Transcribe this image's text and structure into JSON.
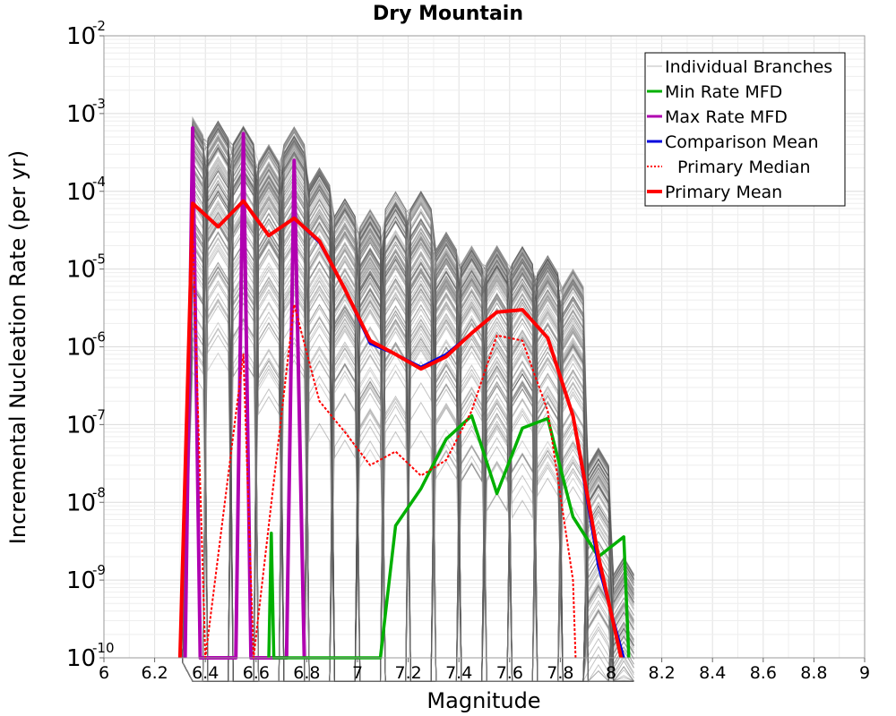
{
  "chart_data": {
    "type": "line",
    "title": "Dry Mountain",
    "xlabel": "Magnitude",
    "ylabel": "Incremental Nucleation Rate (per yr)",
    "xlim": [
      6,
      9
    ],
    "ylim": [
      1e-10,
      0.01
    ],
    "yscale": "log",
    "grid": true,
    "legend_position": "top-right",
    "x_ticks": [
      "6",
      "6.2",
      "6.4",
      "6.6",
      "6.8",
      "7",
      "7.2",
      "7.4",
      "7.6",
      "7.8",
      "8",
      "8.2",
      "8.4",
      "8.6",
      "8.8",
      "9"
    ],
    "y_ticks": [
      {
        "base": "10",
        "exp": "-10"
      },
      {
        "base": "10",
        "exp": "-9"
      },
      {
        "base": "10",
        "exp": "-8"
      },
      {
        "base": "10",
        "exp": "-7"
      },
      {
        "base": "10",
        "exp": "-6"
      },
      {
        "base": "10",
        "exp": "-5"
      },
      {
        "base": "10",
        "exp": "-4"
      },
      {
        "base": "10",
        "exp": "-3"
      },
      {
        "base": "10",
        "exp": "-2"
      }
    ],
    "legend": [
      {
        "label": "Individual Branches",
        "color": "#bbbbbb",
        "style": "thin"
      },
      {
        "label": "Min Rate MFD",
        "color": "#00b000",
        "style": "solid"
      },
      {
        "label": "Max Rate MFD",
        "color": "#b000b0",
        "style": "solid"
      },
      {
        "label": "Comparison Mean",
        "color": "#0000dd",
        "style": "solid"
      },
      {
        "label": "Primary Median",
        "color": "#ff0000",
        "style": "dotted"
      },
      {
        "label": "Primary Mean",
        "color": "#ff0000",
        "style": "thick"
      }
    ],
    "series": [
      {
        "name": "Individual Branches",
        "color": "#555555",
        "branch_count": 200,
        "envelope_x": [
          6.35,
          6.45,
          6.55,
          6.65,
          6.75,
          6.85,
          6.95,
          7.05,
          7.15,
          7.25,
          7.35,
          7.45,
          7.55,
          7.65,
          7.75,
          7.85,
          7.95,
          8.05
        ],
        "envelope_max": [
          0.0009,
          0.0008,
          0.0007,
          0.0004,
          0.0007,
          0.0002,
          8e-05,
          6e-05,
          0.0001,
          0.0001,
          3e-05,
          2e-05,
          2e-05,
          2e-05,
          1.5e-05,
          1e-05,
          5e-08,
          2e-09
        ]
      },
      {
        "name": "Min Rate MFD",
        "color": "#00b000",
        "x": [
          6.65,
          6.66,
          6.67,
          7.09,
          7.15,
          7.25,
          7.35,
          7.45,
          7.55,
          7.65,
          7.75,
          7.85,
          7.95,
          8.05,
          8.07
        ],
        "y": [
          1e-10,
          4e-09,
          1e-10,
          1e-10,
          5e-09,
          1.5e-08,
          6.5e-08,
          1.3e-07,
          1.3e-08,
          9e-08,
          1.2e-07,
          6.5e-09,
          2e-09,
          3.6e-09,
          1e-10
        ]
      },
      {
        "name": "Max Rate MFD",
        "color": "#b000b0",
        "x": [
          6.32,
          6.35,
          6.38,
          6.52,
          6.55,
          6.58,
          6.72,
          6.75,
          6.79
        ],
        "y": [
          1e-10,
          0.00065,
          1e-10,
          1e-10,
          0.00055,
          1e-10,
          1e-10,
          0.00025,
          1e-10
        ]
      },
      {
        "name": "Comparison Mean",
        "color": "#0000dd",
        "x": [
          6.3,
          6.35,
          6.45,
          6.55,
          6.65,
          6.75,
          6.85,
          6.95,
          7.05,
          7.15,
          7.25,
          7.35,
          7.45,
          7.55,
          7.65,
          7.75,
          7.85,
          7.95,
          8.05
        ],
        "y": [
          1e-10,
          7e-05,
          3.5e-05,
          7.5e-05,
          2.7e-05,
          4.5e-05,
          2.2e-05,
          5.5e-06,
          1.1e-06,
          8e-07,
          5.5e-07,
          8e-07,
          1.5e-06,
          2.8e-06,
          3e-06,
          1.3e-06,
          1.3e-07,
          1.5e-09,
          1e-10
        ]
      },
      {
        "name": "Primary Median",
        "color": "#ff0000",
        "x": [
          6.35,
          6.4,
          6.55,
          6.59,
          6.75,
          6.85,
          6.95,
          7.05,
          7.15,
          7.25,
          7.35,
          7.45,
          7.55,
          7.65,
          7.75,
          7.85,
          7.86
        ],
        "y": [
          3e-05,
          1e-10,
          8e-07,
          1e-10,
          3.5e-06,
          2e-07,
          8e-08,
          3e-08,
          4.5e-08,
          2.2e-08,
          3.5e-08,
          1.5e-07,
          1.4e-06,
          1.2e-06,
          1.5e-07,
          1e-09,
          1e-10
        ]
      },
      {
        "name": "Primary Mean",
        "color": "#ff0000",
        "x": [
          6.3,
          6.35,
          6.45,
          6.55,
          6.65,
          6.75,
          6.85,
          6.95,
          7.05,
          7.15,
          7.25,
          7.35,
          7.45,
          7.55,
          7.65,
          7.75,
          7.85,
          7.95,
          8.04
        ],
        "y": [
          1e-10,
          7e-05,
          3.5e-05,
          7.5e-05,
          2.7e-05,
          4.5e-05,
          2.3e-05,
          5.5e-06,
          1.2e-06,
          8e-07,
          5.2e-07,
          7.5e-07,
          1.5e-06,
          2.8e-06,
          3e-06,
          1.3e-06,
          1.3e-07,
          2e-09,
          1e-10
        ]
      }
    ]
  }
}
